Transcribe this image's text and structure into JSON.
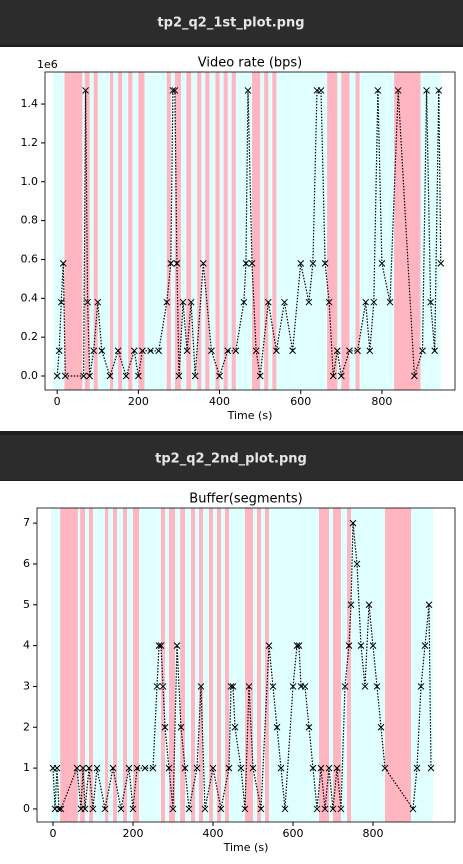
{
  "headers": [
    "tp2_q2_1st_plot.png",
    "tp2_q2_2nd_plot.png"
  ],
  "chart_data": [
    {
      "type": "line",
      "title": "Video rate (bps)",
      "x_label": "Time (s)",
      "offset_text": "1e6",
      "xlim": [
        -30,
        980
      ],
      "ylim": [
        -72000,
        1565000
      ],
      "xticks": [
        0,
        200,
        400,
        600,
        800
      ],
      "yticks": [
        {
          "value": 0,
          "label": "0.0"
        },
        {
          "value": 200000,
          "label": "0.2"
        },
        {
          "value": 400000,
          "label": "0.4"
        },
        {
          "value": 600000,
          "label": "0.6"
        },
        {
          "value": 800000,
          "label": "0.8"
        },
        {
          "value": 1000000,
          "label": "1.0"
        },
        {
          "value": 1200000,
          "label": "1.2"
        },
        {
          "value": 1400000,
          "label": "1.4"
        }
      ],
      "spans": [
        {
          "start": -10,
          "end": 945,
          "color": "#e0ffff"
        },
        {
          "start": 18,
          "end": 62,
          "color": "#ffb6c1"
        },
        {
          "start": 68,
          "end": 80,
          "color": "#ffb6c1"
        },
        {
          "start": 90,
          "end": 100,
          "color": "#ffb6c1"
        },
        {
          "start": 130,
          "end": 138,
          "color": "#ffb6c1"
        },
        {
          "start": 150,
          "end": 160,
          "color": "#ffb6c1"
        },
        {
          "start": 175,
          "end": 185,
          "color": "#ffb6c1"
        },
        {
          "start": 200,
          "end": 215,
          "color": "#ffb6c1"
        },
        {
          "start": 270,
          "end": 280,
          "color": "#ffb6c1"
        },
        {
          "start": 290,
          "end": 305,
          "color": "#ffb6c1"
        },
        {
          "start": 318,
          "end": 330,
          "color": "#ffb6c1"
        },
        {
          "start": 345,
          "end": 355,
          "color": "#ffb6c1"
        },
        {
          "start": 365,
          "end": 375,
          "color": "#ffb6c1"
        },
        {
          "start": 390,
          "end": 400,
          "color": "#ffb6c1"
        },
        {
          "start": 410,
          "end": 420,
          "color": "#ffb6c1"
        },
        {
          "start": 430,
          "end": 440,
          "color": "#ffb6c1"
        },
        {
          "start": 480,
          "end": 500,
          "color": "#ffb6c1"
        },
        {
          "start": 510,
          "end": 520,
          "color": "#ffb6c1"
        },
        {
          "start": 530,
          "end": 540,
          "color": "#ffb6c1"
        },
        {
          "start": 665,
          "end": 690,
          "color": "#ffb6c1"
        },
        {
          "start": 700,
          "end": 720,
          "color": "#ffb6c1"
        },
        {
          "start": 735,
          "end": 745,
          "color": "#ffb6c1"
        },
        {
          "start": 830,
          "end": 895,
          "color": "#ffb6c1"
        }
      ],
      "series": [
        {
          "color": "#000000",
          "x": [
            0,
            5,
            10,
            15,
            20,
            65,
            70,
            75,
            80,
            90,
            100,
            110,
            130,
            150,
            170,
            190,
            200,
            210,
            230,
            250,
            270,
            280,
            285,
            290,
            295,
            300,
            310,
            320,
            330,
            340,
            360,
            380,
            400,
            420,
            440,
            460,
            465,
            470,
            480,
            490,
            500,
            520,
            540,
            560,
            580,
            600,
            620,
            630,
            640,
            650,
            660,
            670,
            680,
            690,
            700,
            720,
            740,
            760,
            770,
            780,
            790,
            800,
            820,
            840,
            880,
            900,
            910,
            920,
            930,
            940,
            945
          ],
          "values": [
            0,
            130000,
            380000,
            580000,
            0,
            0,
            1470000,
            380000,
            0,
            130000,
            380000,
            130000,
            0,
            130000,
            0,
            130000,
            0,
            130000,
            130000,
            130000,
            380000,
            580000,
            1470000,
            1470000,
            580000,
            0,
            380000,
            130000,
            380000,
            0,
            580000,
            130000,
            0,
            130000,
            130000,
            380000,
            580000,
            1470000,
            580000,
            130000,
            0,
            380000,
            130000,
            380000,
            130000,
            580000,
            380000,
            580000,
            1470000,
            1470000,
            580000,
            380000,
            0,
            130000,
            0,
            130000,
            130000,
            380000,
            130000,
            380000,
            1470000,
            580000,
            380000,
            1470000,
            0,
            130000,
            1470000,
            380000,
            130000,
            1470000,
            580000
          ]
        }
      ]
    },
    {
      "type": "line",
      "title": "Buffer(segments)",
      "x_label": "Time (s)",
      "xlim": [
        -40,
        1005
      ],
      "ylim": [
        -0.32,
        7.37
      ],
      "xticks": [
        0,
        200,
        400,
        600,
        800
      ],
      "yticks": [
        0,
        1,
        2,
        3,
        4,
        5,
        6,
        7
      ],
      "spans": [
        {
          "start": -5,
          "end": 950,
          "color": "#e0ffff"
        },
        {
          "start": 18,
          "end": 62,
          "color": "#ffb6c1"
        },
        {
          "start": 68,
          "end": 80,
          "color": "#ffb6c1"
        },
        {
          "start": 90,
          "end": 100,
          "color": "#ffb6c1"
        },
        {
          "start": 130,
          "end": 138,
          "color": "#ffb6c1"
        },
        {
          "start": 150,
          "end": 160,
          "color": "#ffb6c1"
        },
        {
          "start": 175,
          "end": 185,
          "color": "#ffb6c1"
        },
        {
          "start": 200,
          "end": 215,
          "color": "#ffb6c1"
        },
        {
          "start": 270,
          "end": 280,
          "color": "#ffb6c1"
        },
        {
          "start": 290,
          "end": 305,
          "color": "#ffb6c1"
        },
        {
          "start": 318,
          "end": 330,
          "color": "#ffb6c1"
        },
        {
          "start": 345,
          "end": 355,
          "color": "#ffb6c1"
        },
        {
          "start": 365,
          "end": 375,
          "color": "#ffb6c1"
        },
        {
          "start": 390,
          "end": 400,
          "color": "#ffb6c1"
        },
        {
          "start": 410,
          "end": 420,
          "color": "#ffb6c1"
        },
        {
          "start": 430,
          "end": 440,
          "color": "#ffb6c1"
        },
        {
          "start": 480,
          "end": 500,
          "color": "#ffb6c1"
        },
        {
          "start": 510,
          "end": 520,
          "color": "#ffb6c1"
        },
        {
          "start": 530,
          "end": 540,
          "color": "#ffb6c1"
        },
        {
          "start": 665,
          "end": 690,
          "color": "#ffb6c1"
        },
        {
          "start": 700,
          "end": 720,
          "color": "#ffb6c1"
        },
        {
          "start": 735,
          "end": 745,
          "color": "#ffb6c1"
        },
        {
          "start": 830,
          "end": 895,
          "color": "#ffb6c1"
        }
      ],
      "series": [
        {
          "color": "#000000",
          "x": [
            0,
            5,
            10,
            15,
            20,
            60,
            70,
            75,
            80,
            90,
            100,
            110,
            130,
            150,
            170,
            190,
            200,
            210,
            230,
            250,
            260,
            265,
            270,
            275,
            280,
            290,
            300,
            310,
            320,
            330,
            340,
            360,
            370,
            380,
            400,
            420,
            440,
            445,
            450,
            455,
            470,
            480,
            490,
            500,
            520,
            540,
            550,
            560,
            570,
            580,
            600,
            610,
            615,
            620,
            630,
            640,
            650,
            660,
            670,
            680,
            690,
            700,
            710,
            720,
            730,
            740,
            745,
            750,
            760,
            770,
            780,
            790,
            800,
            810,
            820,
            830,
            900,
            910,
            920,
            930,
            940,
            945
          ],
          "values": [
            1,
            0,
            1,
            0,
            0,
            1,
            0,
            1,
            0,
            1,
            0,
            1,
            0,
            1,
            0,
            1,
            0,
            1,
            1,
            1,
            3,
            4,
            4,
            3,
            2,
            1,
            0,
            4,
            2,
            1,
            0,
            1,
            3,
            0,
            1,
            0,
            1,
            3,
            3,
            2,
            1,
            0,
            3,
            1,
            0,
            4,
            3,
            2,
            1,
            0,
            3,
            4,
            4,
            3,
            3,
            2,
            1,
            0,
            1,
            0,
            1,
            0,
            1,
            0,
            3,
            4,
            5,
            7,
            6,
            4,
            3,
            5,
            4,
            3,
            2,
            1,
            0,
            1,
            3,
            4,
            5,
            1
          ]
        }
      ]
    }
  ]
}
